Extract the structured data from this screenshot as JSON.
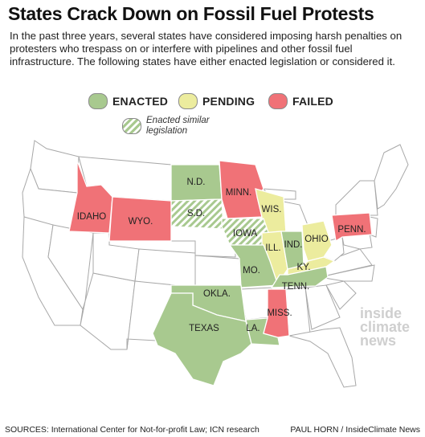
{
  "title": "States Crack Down on Fossil Fuel Protests",
  "intro": "In the past three years, several states have considered imposing harsh penalties on protesters who trespass on or interfere with pipelines and other fossil fuel infrastructure. The following states have either enacted legislation or considered it.",
  "legend": {
    "enacted": "ENACTED",
    "pending": "PENDING",
    "failed": "FAILED",
    "similar": "Enacted similar legislation"
  },
  "colors": {
    "enacted": "#a8c98f",
    "pending": "#ecec9e",
    "failed": "#f07277",
    "none": "#ffffff",
    "hatch": "#a8c98f"
  },
  "states": {
    "nd": {
      "label": "N.D.",
      "status": "enacted"
    },
    "sd": {
      "label": "S.D.",
      "status": "similar"
    },
    "minn": {
      "label": "MINN.",
      "status": "failed"
    },
    "idaho": {
      "label": "IDAHO",
      "status": "failed"
    },
    "wyo": {
      "label": "WYO.",
      "status": "failed"
    },
    "wis": {
      "label": "WIS.",
      "status": "pending"
    },
    "iowa": {
      "label": "IOWA",
      "status": "similar"
    },
    "ill": {
      "label": "ILL.",
      "status": "pending"
    },
    "ind": {
      "label": "IND.",
      "status": "enacted"
    },
    "ohio": {
      "label": "OHIO",
      "status": "pending"
    },
    "penn": {
      "label": "PENN.",
      "status": "failed"
    },
    "mo": {
      "label": "MO.",
      "status": "enacted"
    },
    "ky": {
      "label": "KY.",
      "status": "pending"
    },
    "tenn": {
      "label": "TENN.",
      "status": "enacted"
    },
    "okla": {
      "label": "OKLA.",
      "status": "enacted"
    },
    "texas": {
      "label": "TEXAS",
      "status": "enacted"
    },
    "la": {
      "label": "LA.",
      "status": "enacted"
    },
    "miss": {
      "label": "MISS.",
      "status": "failed"
    }
  },
  "watermark": [
    "inside",
    "climate",
    "news"
  ],
  "footer": {
    "sources": "SOURCES: International Center for Not-for-profit Law; ICN research",
    "credit": "PAUL HORN / InsideClimate News"
  }
}
